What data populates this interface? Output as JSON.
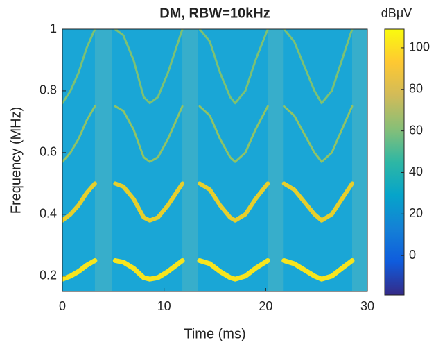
{
  "chart_data": {
    "type": "spectrogram",
    "title": "DM, RBW=10kHz",
    "x_label": "Time (ms)",
    "y_label": "Frequency (MHz)",
    "xlim": [
      0,
      30
    ],
    "xticks": [
      0,
      10,
      20,
      30
    ],
    "ylim": [
      0.15,
      1
    ],
    "yticks": [
      0.2,
      0.4,
      0.6,
      0.8,
      1
    ],
    "background_color": "#1aa6d6",
    "gap_color": "#3fb0c8",
    "gaps": [
      [
        3.2,
        4.9
      ],
      [
        11.8,
        13.3
      ],
      [
        20.2,
        21.7
      ],
      [
        28.5,
        30
      ]
    ],
    "x": [
      0,
      0.8,
      1.6,
      2.4,
      3.2,
      4.2,
      5.2,
      6,
      7,
      8,
      8.6,
      9.4,
      10.4,
      11.2,
      11.8,
      12.6,
      13.5,
      14.5,
      15.5,
      16.5,
      17,
      18,
      19,
      20.2,
      21,
      21.8,
      22.8,
      23.8,
      24.8,
      25.5,
      26.5,
      27.5,
      28.5
    ],
    "series": [
      {
        "color": "#f7e51e",
        "line_width": 7,
        "values": [
          0.19,
          0.2,
          0.215,
          0.235,
          0.25,
          null,
          0.25,
          0.245,
          0.225,
          0.195,
          0.19,
          0.195,
          0.215,
          0.235,
          0.25,
          null,
          0.25,
          0.24,
          0.215,
          0.195,
          0.19,
          0.2,
          0.225,
          0.25,
          null,
          0.25,
          0.24,
          0.22,
          0.2,
          0.19,
          0.2,
          0.225,
          0.25
        ]
      },
      {
        "color": "#e6cf2c",
        "line_width": 6,
        "values": [
          0.38,
          0.4,
          0.43,
          0.47,
          0.5,
          null,
          0.5,
          0.49,
          0.45,
          0.39,
          0.38,
          0.39,
          0.43,
          0.47,
          0.5,
          null,
          0.5,
          0.48,
          0.43,
          0.39,
          0.38,
          0.4,
          0.45,
          0.5,
          null,
          0.5,
          0.48,
          0.44,
          0.4,
          0.38,
          0.4,
          0.45,
          0.5
        ]
      },
      {
        "color": "#8fc366",
        "line_width": 3,
        "values": [
          0.57,
          0.6,
          0.645,
          0.705,
          0.75,
          null,
          0.75,
          0.735,
          0.675,
          0.585,
          0.57,
          0.585,
          0.645,
          0.705,
          0.75,
          null,
          0.75,
          0.72,
          0.645,
          0.585,
          0.57,
          0.6,
          0.675,
          0.75,
          null,
          0.75,
          0.72,
          0.66,
          0.6,
          0.57,
          0.6,
          0.675,
          0.75
        ]
      },
      {
        "color": "#7dc173",
        "line_width": 3,
        "values": [
          0.76,
          0.8,
          0.86,
          0.94,
          1,
          null,
          1,
          0.98,
          0.9,
          0.78,
          0.76,
          0.78,
          0.86,
          0.94,
          1,
          null,
          1,
          0.96,
          0.86,
          0.78,
          0.76,
          0.8,
          0.9,
          1,
          null,
          1,
          0.96,
          0.88,
          0.8,
          0.76,
          0.8,
          0.9,
          1
        ]
      }
    ],
    "colorbar_label": "dBμV",
    "clim": [
      -19,
      109
    ],
    "cticks": [
      0,
      20,
      40,
      60,
      80,
      100
    ],
    "colormap": [
      "#352a87",
      "#0f5cdd",
      "#1481d6",
      "#06a4ca",
      "#2eb7a4",
      "#87bf77",
      "#d1bb59",
      "#fec832",
      "#f9fb0e"
    ]
  }
}
